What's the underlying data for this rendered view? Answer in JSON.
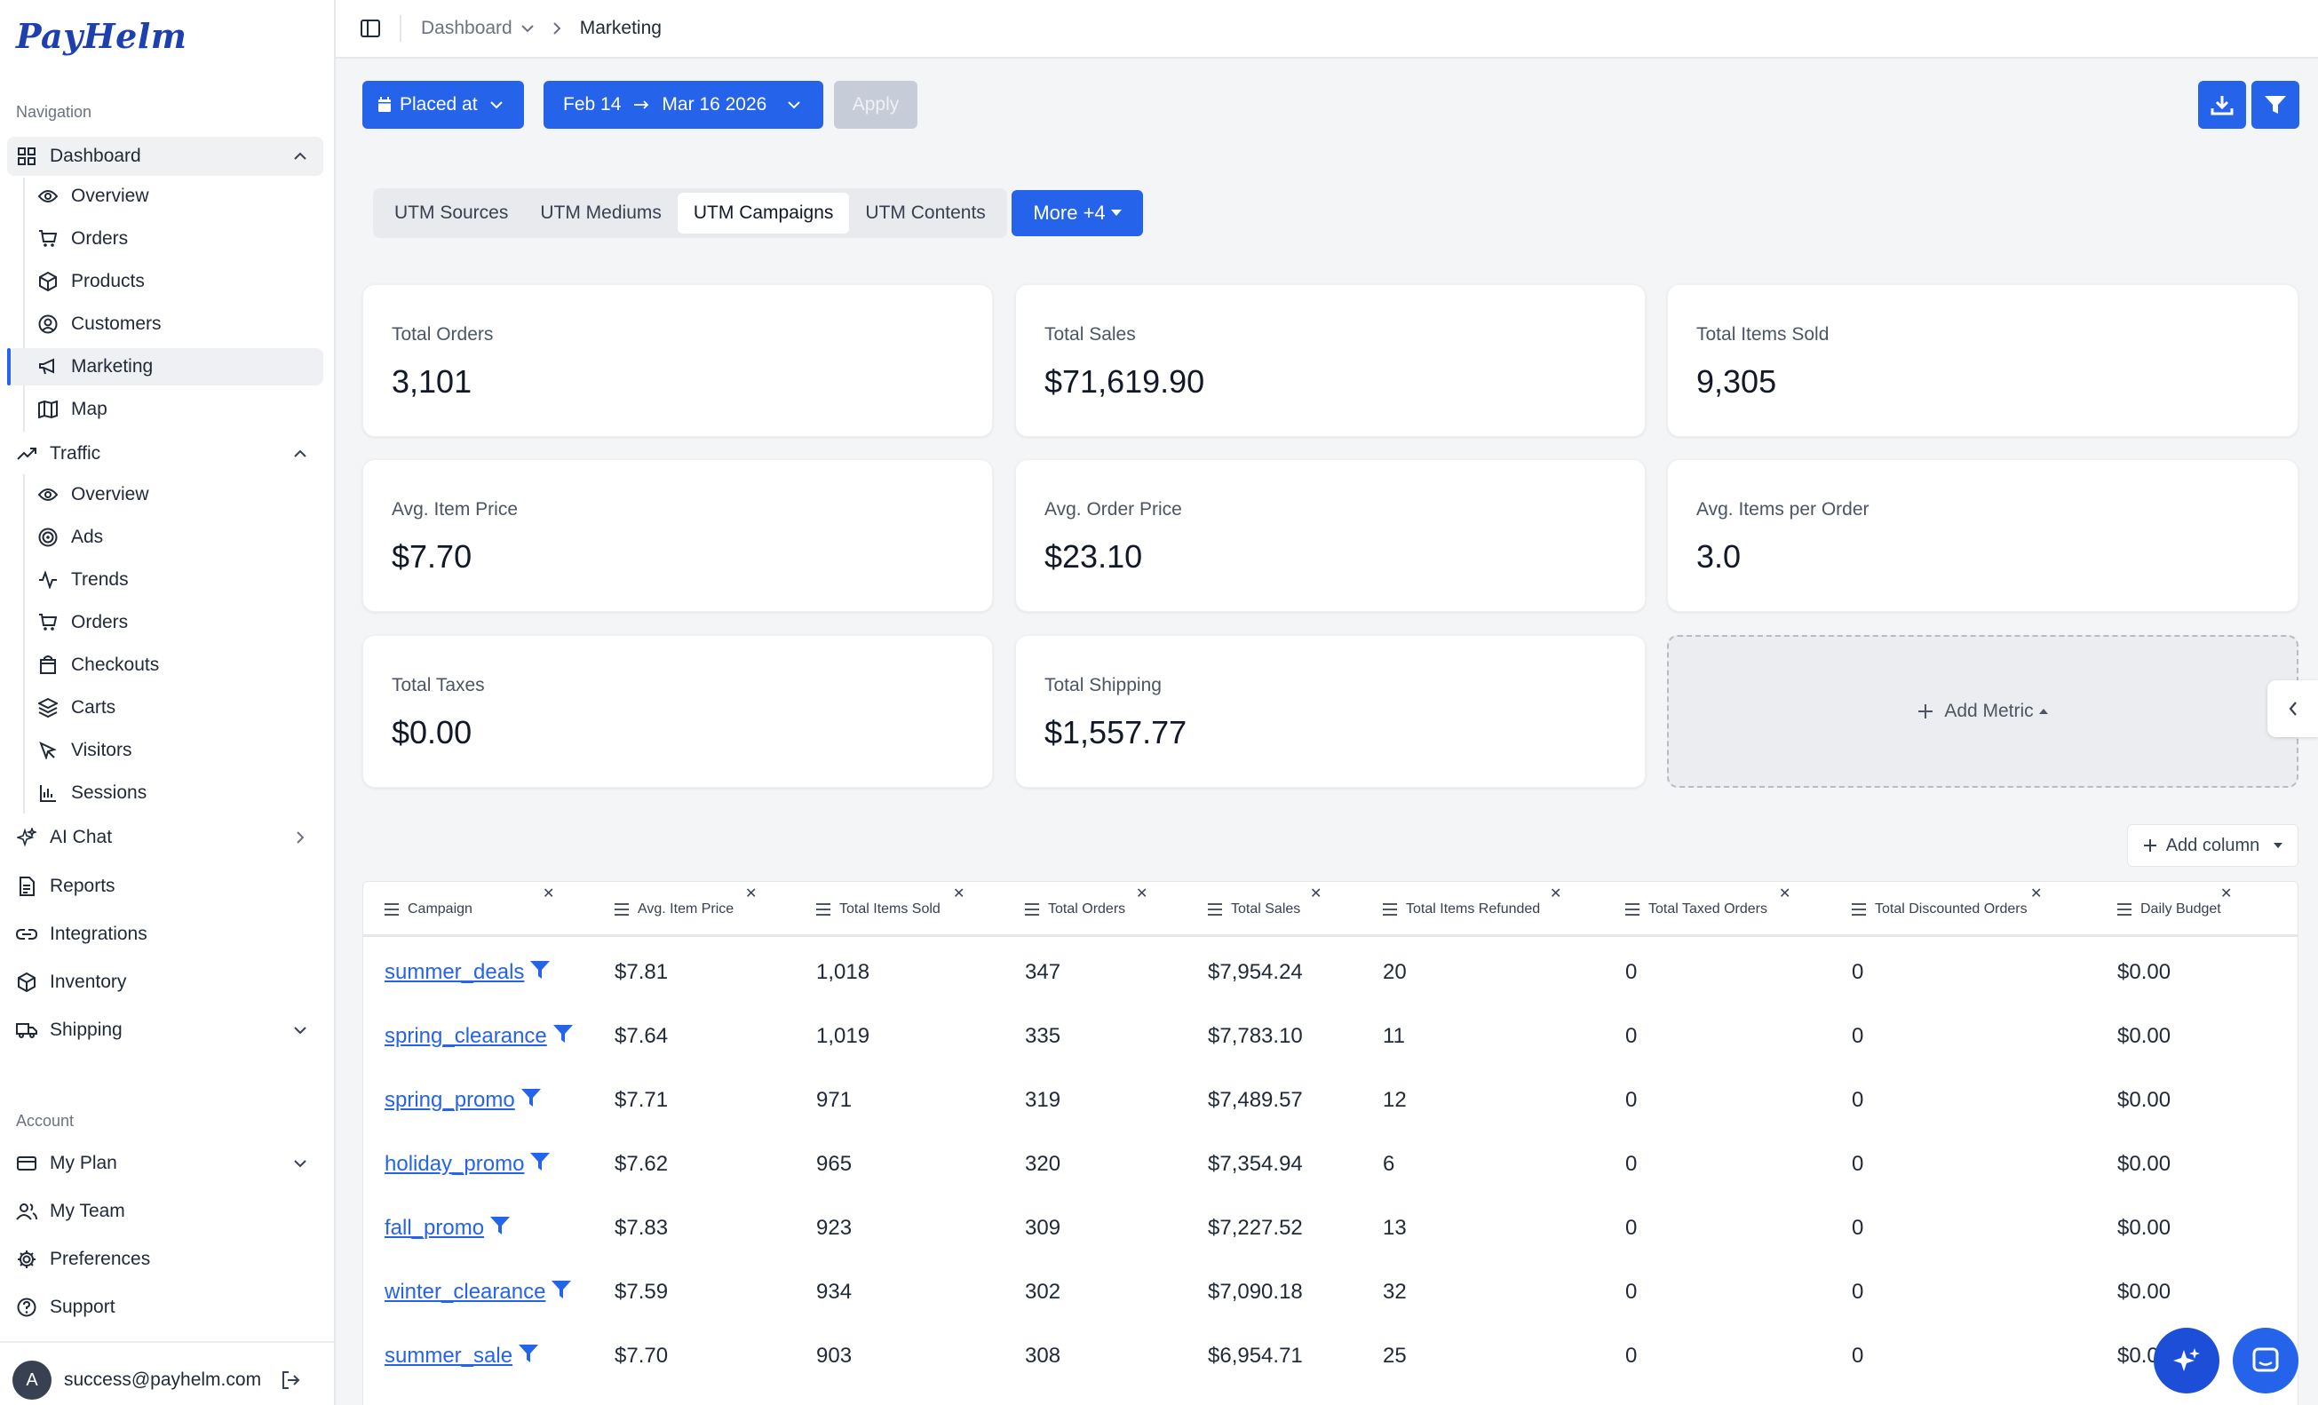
{
  "brand": {
    "logo": "PayHelm",
    "accent": "#2563eb"
  },
  "sidebar": {
    "nav_label": "Navigation",
    "dashboard": {
      "label": "Dashboard",
      "items": [
        "Overview",
        "Orders",
        "Products",
        "Customers",
        "Marketing",
        "Map"
      ]
    },
    "traffic": {
      "label": "Traffic",
      "items": [
        "Overview",
        "Ads",
        "Trends",
        "Orders",
        "Checkouts",
        "Carts",
        "Visitors",
        "Sessions"
      ]
    },
    "ai_chat": "AI Chat",
    "reports": "Reports",
    "integrations": "Integrations",
    "inventory": "Inventory",
    "shipping": "Shipping",
    "account_label": "Account",
    "my_plan": "My Plan",
    "my_team": "My Team",
    "preferences": "Preferences",
    "support": "Support",
    "user": {
      "initial": "A",
      "email": "success@payhelm.com"
    }
  },
  "topbar": {
    "crumb_parent": "Dashboard",
    "crumb_current": "Marketing"
  },
  "filters": {
    "date_field": "Placed at",
    "date_from": "Feb 14",
    "date_to": "Mar 16 2026",
    "apply": "Apply"
  },
  "tabs": {
    "items": [
      "UTM Sources",
      "UTM Mediums",
      "UTM Campaigns",
      "UTM Contents"
    ],
    "active": "UTM Campaigns",
    "more": "More +4"
  },
  "metrics": [
    {
      "label": "Total Orders",
      "value": "3,101"
    },
    {
      "label": "Total Sales",
      "value": "$71,619.90"
    },
    {
      "label": "Total Items Sold",
      "value": "9,305"
    },
    {
      "label": "Avg. Item Price",
      "value": "$7.70"
    },
    {
      "label": "Avg. Order Price",
      "value": "$23.10"
    },
    {
      "label": "Avg. Items per Order",
      "value": "3.0"
    },
    {
      "label": "Total Taxes",
      "value": "$0.00"
    },
    {
      "label": "Total Shipping",
      "value": "$1,557.77"
    }
  ],
  "add_metric": "Add Metric",
  "add_column": "Add column",
  "table": {
    "columns": [
      "Campaign",
      "Avg. Item Price",
      "Total Items Sold",
      "Total Orders",
      "Total Sales",
      "Total Items Refunded",
      "Total Taxed Orders",
      "Total Discounted Orders",
      "Daily Budget"
    ],
    "rows": [
      [
        "summer_deals",
        "$7.81",
        "1,018",
        "347",
        "$7,954.24",
        "20",
        "0",
        "0",
        "$0.00"
      ],
      [
        "spring_clearance",
        "$7.64",
        "1,019",
        "335",
        "$7,783.10",
        "11",
        "0",
        "0",
        "$0.00"
      ],
      [
        "spring_promo",
        "$7.71",
        "971",
        "319",
        "$7,489.57",
        "12",
        "0",
        "0",
        "$0.00"
      ],
      [
        "holiday_promo",
        "$7.62",
        "965",
        "320",
        "$7,354.94",
        "6",
        "0",
        "0",
        "$0.00"
      ],
      [
        "fall_promo",
        "$7.83",
        "923",
        "309",
        "$7,227.52",
        "13",
        "0",
        "0",
        "$0.00"
      ],
      [
        "winter_clearance",
        "$7.59",
        "934",
        "302",
        "$7,090.18",
        "32",
        "0",
        "0",
        "$0.00"
      ],
      [
        "summer_sale",
        "$7.70",
        "903",
        "308",
        "$6,954.71",
        "25",
        "0",
        "0",
        "$0.0"
      ]
    ]
  }
}
